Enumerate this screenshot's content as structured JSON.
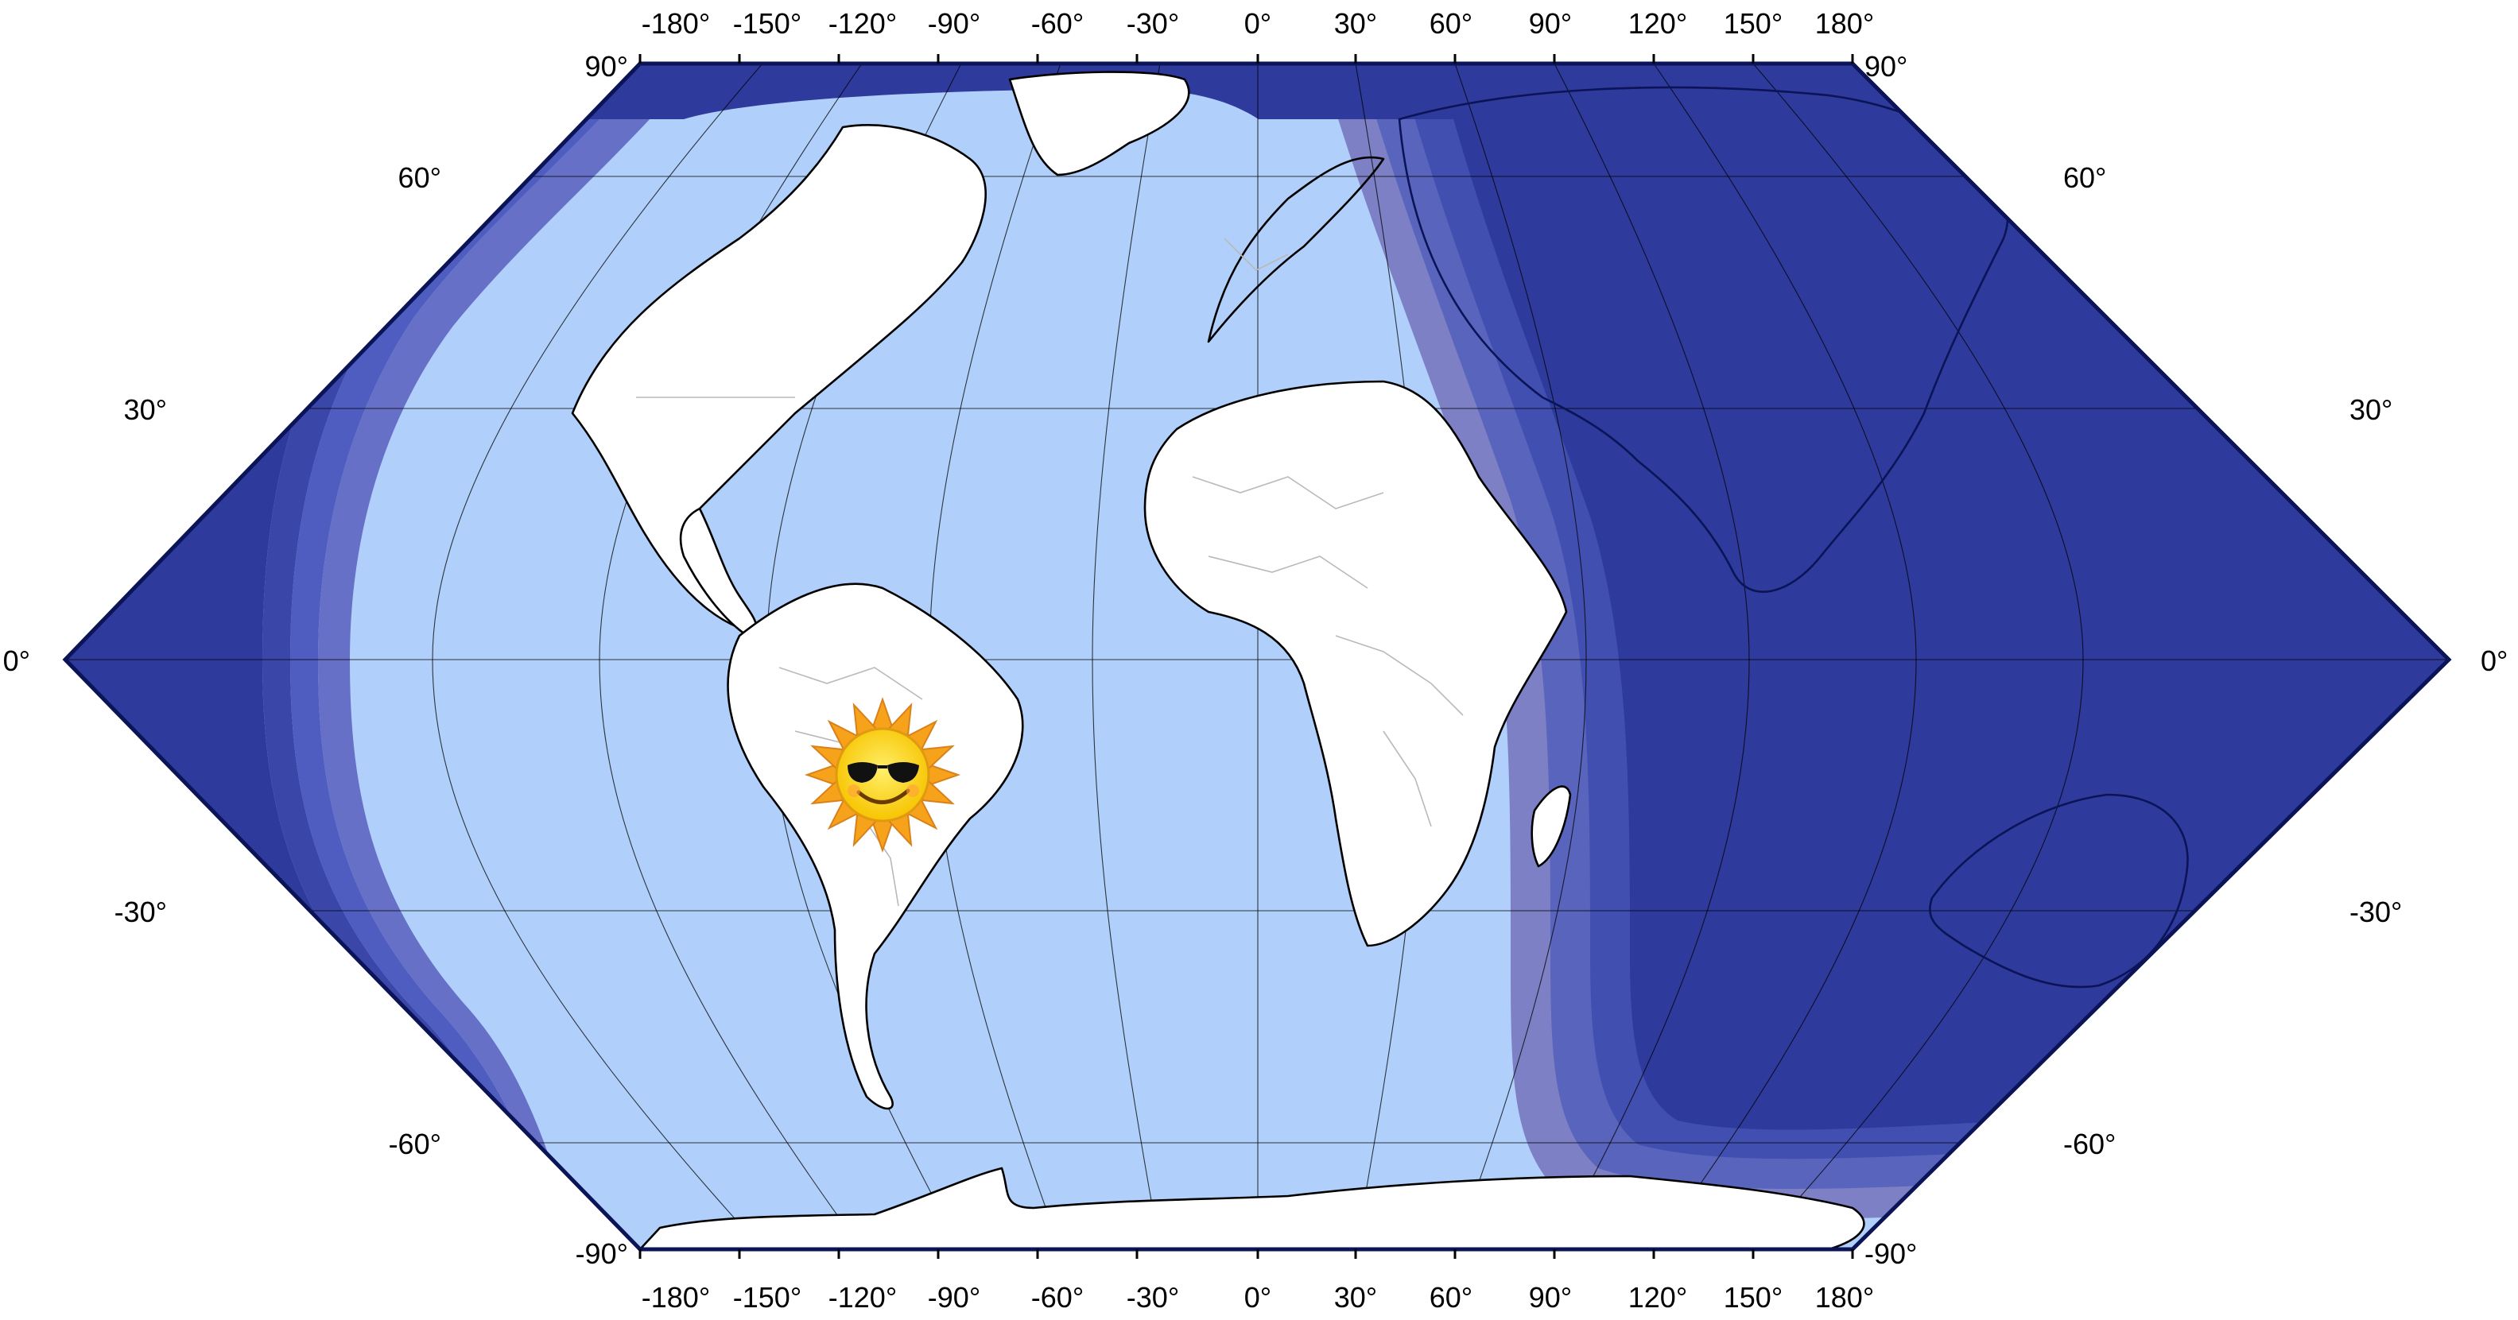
{
  "map": {
    "projection": "sinusoidal-wrapped",
    "colors": {
      "ocean_day": "#b0d0fb",
      "land": "#ffffff",
      "night_1": "#6670c6",
      "night_2": "#4e5dbf",
      "night_3": "#3a47a8",
      "night_4": "#2e3a9c",
      "frame": "#0a1456",
      "border_lines": "#b9b9b9"
    },
    "top_labels": [
      "-180°",
      "-150°",
      "-120°",
      "-90°",
      "-60°",
      "-30°",
      "0°",
      "30°",
      "60°",
      "90°",
      "120°",
      "150°",
      "180°"
    ],
    "bottom_labels": [
      "-180°",
      "-150°",
      "-120°",
      "-90°",
      "-60°",
      "-30°",
      "0°",
      "30°",
      "60°",
      "90°",
      "120°",
      "150°",
      "180°"
    ],
    "left_labels": [
      "90°",
      "60°",
      "30°",
      "0°",
      "-30°",
      "-60°",
      "-90°"
    ],
    "right_labels": [
      "90°",
      "60°",
      "30°",
      "0°",
      "-30°",
      "-60°",
      "-90°"
    ],
    "sun_marker": {
      "icon": "sun-with-sunglasses-icon",
      "lon": -55,
      "lat": -15
    }
  }
}
